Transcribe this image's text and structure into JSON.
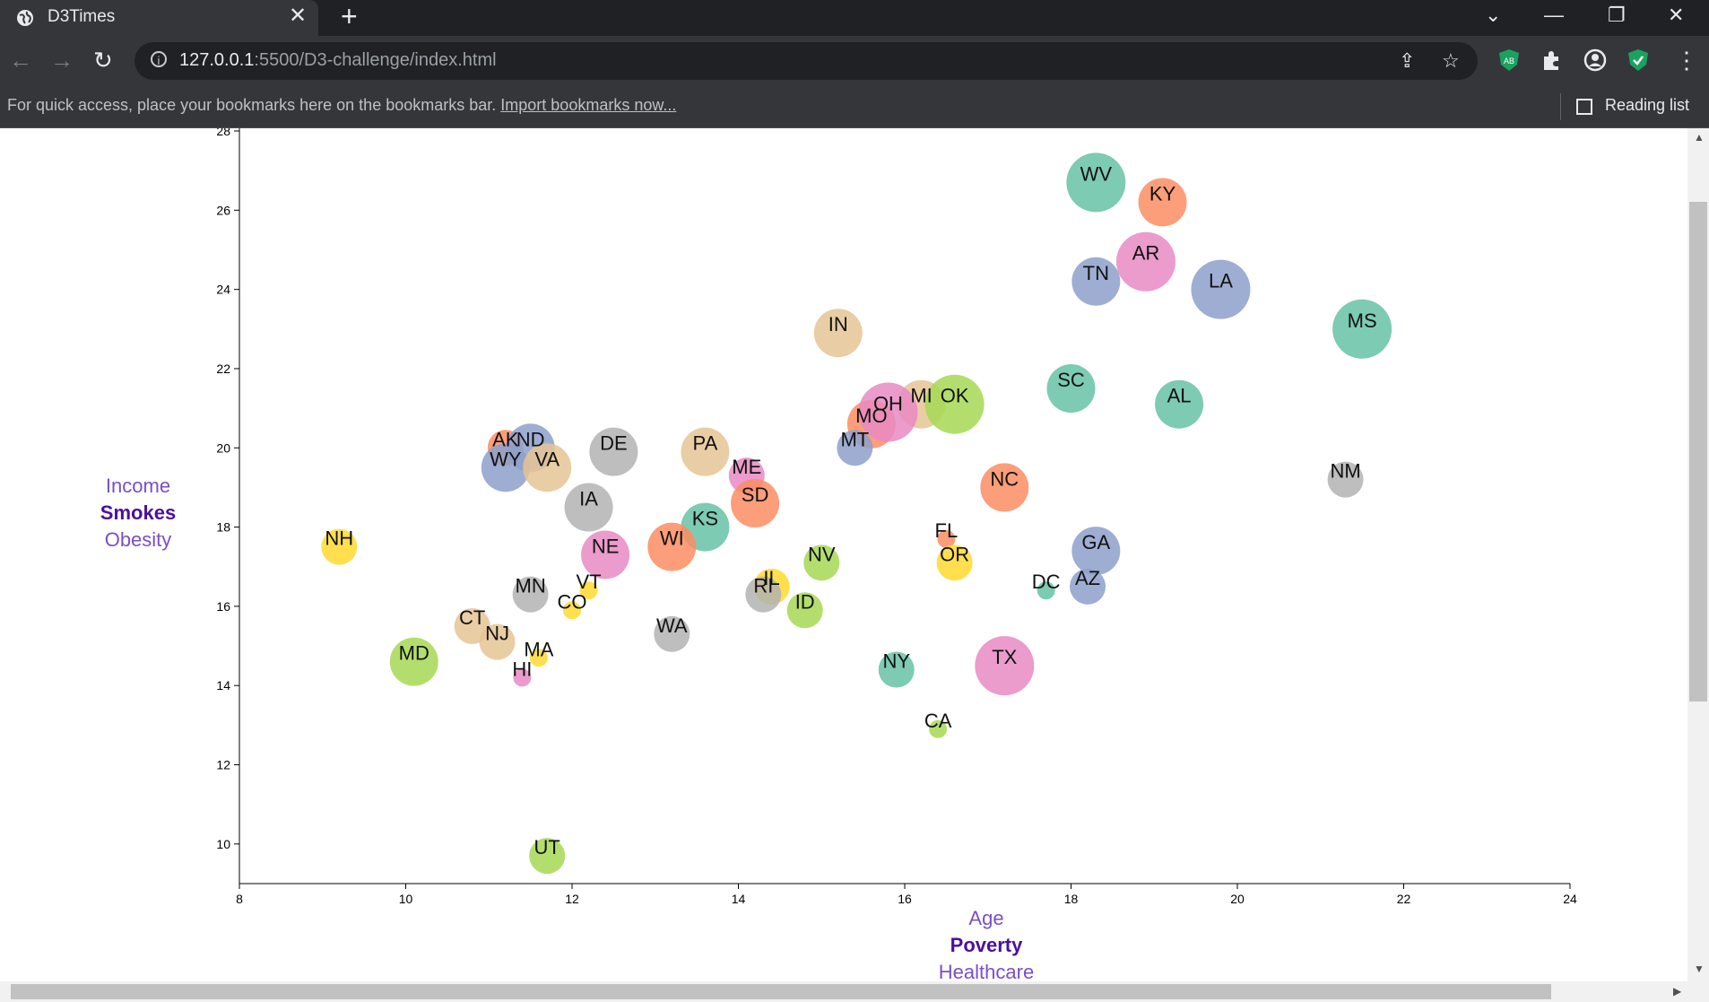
{
  "browser": {
    "tab_title": "D3Times",
    "url_host": "127.0.0.1",
    "url_rest": ":5500/D3-challenge/index.html",
    "bookmarks_text": "For quick access, place your bookmarks here on the bookmarks bar.",
    "bookmarks_link": "Import bookmarks now...",
    "reading_list": "Reading list",
    "extension_ab": "AB"
  },
  "chart_data": {
    "type": "scatter",
    "xlim": [
      8,
      24
    ],
    "ylim": [
      9,
      28
    ],
    "x_ticks": [
      8,
      10,
      12,
      14,
      16,
      18,
      20,
      22,
      24
    ],
    "y_ticks": [
      10,
      12,
      14,
      16,
      18,
      20,
      22,
      24,
      26,
      28
    ],
    "x_axis_labels": [
      {
        "text": "Age",
        "active": false
      },
      {
        "text": "Poverty",
        "active": true
      },
      {
        "text": "Healthcare",
        "active": false
      }
    ],
    "y_axis_labels": [
      {
        "text": "Income",
        "active": false
      },
      {
        "text": "Smokes",
        "active": true
      },
      {
        "text": "Obesity",
        "active": false
      }
    ],
    "grid": false,
    "points": [
      {
        "abbr": "WV",
        "x": 18.3,
        "y": 26.7,
        "size": 4,
        "color": "#66c2a5"
      },
      {
        "abbr": "KY",
        "x": 19.1,
        "y": 26.2,
        "size": 3,
        "color": "#fc8d62"
      },
      {
        "abbr": "AR",
        "x": 18.9,
        "y": 24.7,
        "size": 4,
        "color": "#e78ac3"
      },
      {
        "abbr": "TN",
        "x": 18.3,
        "y": 24.2,
        "size": 3,
        "color": "#8da0cb"
      },
      {
        "abbr": "LA",
        "x": 19.8,
        "y": 24.0,
        "size": 4,
        "color": "#8da0cb"
      },
      {
        "abbr": "MS",
        "x": 21.5,
        "y": 23.0,
        "size": 4,
        "color": "#66c2a5"
      },
      {
        "abbr": "IN",
        "x": 15.2,
        "y": 22.9,
        "size": 3,
        "color": "#e5c494"
      },
      {
        "abbr": "SC",
        "x": 18.0,
        "y": 21.5,
        "size": 3,
        "color": "#66c2a5"
      },
      {
        "abbr": "AL",
        "x": 19.3,
        "y": 21.1,
        "size": 3,
        "color": "#66c2a5"
      },
      {
        "abbr": "MI",
        "x": 16.2,
        "y": 21.1,
        "size": 3,
        "color": "#e5c494"
      },
      {
        "abbr": "MO",
        "x": 15.6,
        "y": 20.6,
        "size": 3,
        "color": "#fc8d62"
      },
      {
        "abbr": "OH",
        "x": 15.8,
        "y": 20.9,
        "size": 4,
        "color": "#e78ac3"
      },
      {
        "abbr": "OK",
        "x": 16.6,
        "y": 21.1,
        "size": 4,
        "color": "#a6d854"
      },
      {
        "abbr": "MT",
        "x": 15.4,
        "y": 20.0,
        "size": 2,
        "color": "#8da0cb"
      },
      {
        "abbr": "AK",
        "x": 11.2,
        "y": 20.0,
        "size": 2,
        "color": "#fc8d62"
      },
      {
        "abbr": "ND",
        "x": 11.5,
        "y": 20.0,
        "size": 3,
        "color": "#8da0cb"
      },
      {
        "abbr": "WY",
        "x": 11.2,
        "y": 19.5,
        "size": 3,
        "color": "#8da0cb"
      },
      {
        "abbr": "VA",
        "x": 11.7,
        "y": 19.5,
        "size": 3,
        "color": "#e5c494"
      },
      {
        "abbr": "DE",
        "x": 12.5,
        "y": 19.9,
        "size": 3,
        "color": "#b3b3b3"
      },
      {
        "abbr": "PA",
        "x": 13.6,
        "y": 19.9,
        "size": 3,
        "color": "#e5c494"
      },
      {
        "abbr": "ME",
        "x": 14.1,
        "y": 19.3,
        "size": 2,
        "color": "#e78ac3"
      },
      {
        "abbr": "SD",
        "x": 14.2,
        "y": 18.6,
        "size": 3,
        "color": "#fc8d62"
      },
      {
        "abbr": "NC",
        "x": 17.2,
        "y": 19.0,
        "size": 3,
        "color": "#fc8d62"
      },
      {
        "abbr": "NM",
        "x": 21.3,
        "y": 19.2,
        "size": 2,
        "color": "#b3b3b3"
      },
      {
        "abbr": "IA",
        "x": 12.2,
        "y": 18.5,
        "size": 3,
        "color": "#b3b3b3"
      },
      {
        "abbr": "KS",
        "x": 13.6,
        "y": 18.0,
        "size": 3,
        "color": "#66c2a5"
      },
      {
        "abbr": "NH",
        "x": 9.2,
        "y": 17.5,
        "size": 2,
        "color": "#ffd92f"
      },
      {
        "abbr": "NE",
        "x": 12.4,
        "y": 17.3,
        "size": 3,
        "color": "#e78ac3"
      },
      {
        "abbr": "WI",
        "x": 13.2,
        "y": 17.5,
        "size": 3,
        "color": "#fc8d62"
      },
      {
        "abbr": "FL",
        "x": 16.5,
        "y": 17.7,
        "size": 1,
        "color": "#fc8d62"
      },
      {
        "abbr": "OR",
        "x": 16.6,
        "y": 17.1,
        "size": 2,
        "color": "#ffd92f"
      },
      {
        "abbr": "NV",
        "x": 15.0,
        "y": 17.1,
        "size": 2,
        "color": "#a6d854"
      },
      {
        "abbr": "GA",
        "x": 18.3,
        "y": 17.4,
        "size": 3,
        "color": "#8da0cb"
      },
      {
        "abbr": "IL",
        "x": 14.4,
        "y": 16.5,
        "size": 2,
        "color": "#ffd92f"
      },
      {
        "abbr": "RI",
        "x": 14.3,
        "y": 16.3,
        "size": 2,
        "color": "#b3b3b3"
      },
      {
        "abbr": "ID",
        "x": 14.8,
        "y": 15.9,
        "size": 2,
        "color": "#a6d854"
      },
      {
        "abbr": "DC",
        "x": 17.7,
        "y": 16.4,
        "size": 1,
        "color": "#66c2a5"
      },
      {
        "abbr": "AZ",
        "x": 18.2,
        "y": 16.5,
        "size": 2,
        "color": "#8da0cb"
      },
      {
        "abbr": "MN",
        "x": 11.5,
        "y": 16.3,
        "size": 2,
        "color": "#b3b3b3"
      },
      {
        "abbr": "VT",
        "x": 12.2,
        "y": 16.4,
        "size": 1,
        "color": "#ffd92f"
      },
      {
        "abbr": "CO",
        "x": 12.0,
        "y": 15.9,
        "size": 1,
        "color": "#ffd92f"
      },
      {
        "abbr": "WA",
        "x": 13.2,
        "y": 15.3,
        "size": 2,
        "color": "#b3b3b3"
      },
      {
        "abbr": "CT",
        "x": 10.8,
        "y": 15.5,
        "size": 2,
        "color": "#e5c494"
      },
      {
        "abbr": "NJ",
        "x": 11.1,
        "y": 15.1,
        "size": 2,
        "color": "#e5c494"
      },
      {
        "abbr": "MD",
        "x": 10.1,
        "y": 14.6,
        "size": 3,
        "color": "#a6d854"
      },
      {
        "abbr": "MA",
        "x": 11.6,
        "y": 14.7,
        "size": 1,
        "color": "#ffd92f"
      },
      {
        "abbr": "HI",
        "x": 11.4,
        "y": 14.2,
        "size": 1,
        "color": "#e78ac3"
      },
      {
        "abbr": "NY",
        "x": 15.9,
        "y": 14.4,
        "size": 2,
        "color": "#66c2a5"
      },
      {
        "abbr": "TX",
        "x": 17.2,
        "y": 14.5,
        "size": 4,
        "color": "#e78ac3"
      },
      {
        "abbr": "CA",
        "x": 16.4,
        "y": 12.9,
        "size": 1,
        "color": "#a6d854"
      },
      {
        "abbr": "UT",
        "x": 11.7,
        "y": 9.7,
        "size": 2,
        "color": "#a6d854"
      }
    ]
  }
}
